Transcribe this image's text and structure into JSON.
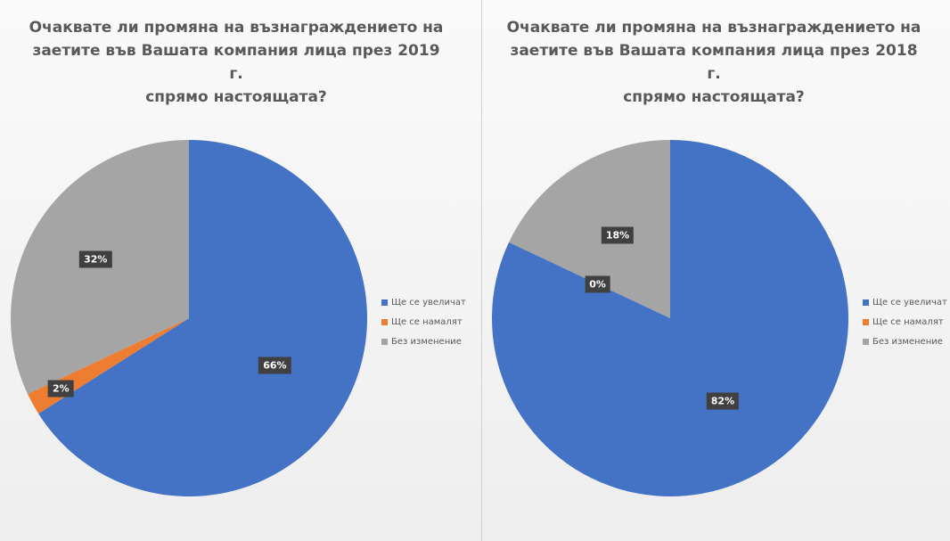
{
  "chart_data": [
    {
      "type": "pie",
      "title": "Очаквате ли промяна на възнаграждението на заетите във Вашата компания лица през 2019 г. спрямо настоящата?",
      "title_lines": [
        "Очаквате ли промяна на възнаграждението на",
        "заетите във Вашата компания лица през 2019 г.",
        "спрямо настоящата?"
      ],
      "categories": [
        "Ще се увеличат",
        "Ще се намалят",
        "Без изменение"
      ],
      "values": [
        66,
        2,
        32
      ],
      "data_labels": [
        "66%",
        "2%",
        "32%"
      ],
      "colors": [
        "#4472c4",
        "#ed7d31",
        "#a5a5a5"
      ],
      "start_angle": "12 o'clock",
      "direction": "clockwise",
      "legend_position": "right"
    },
    {
      "type": "pie",
      "title": "Очаквате ли промяна на възнаграждението на заетите във Вашата компания лица през 2018 г. спрямо настоящата?",
      "title_lines": [
        "Очаквате ли промяна на възнаграждението на",
        "заетите във Вашата компания лица през 2018 г.",
        "спрямо настоящата?"
      ],
      "categories": [
        "Ще се увеличат",
        "Ще се намалят",
        "Без изменение"
      ],
      "values": [
        82,
        0,
        18
      ],
      "data_labels": [
        "82%",
        "0%",
        "18%"
      ],
      "colors": [
        "#4472c4",
        "#ed7d31",
        "#a5a5a5"
      ],
      "start_angle": "12 o'clock",
      "direction": "clockwise",
      "legend_position": "right"
    }
  ]
}
